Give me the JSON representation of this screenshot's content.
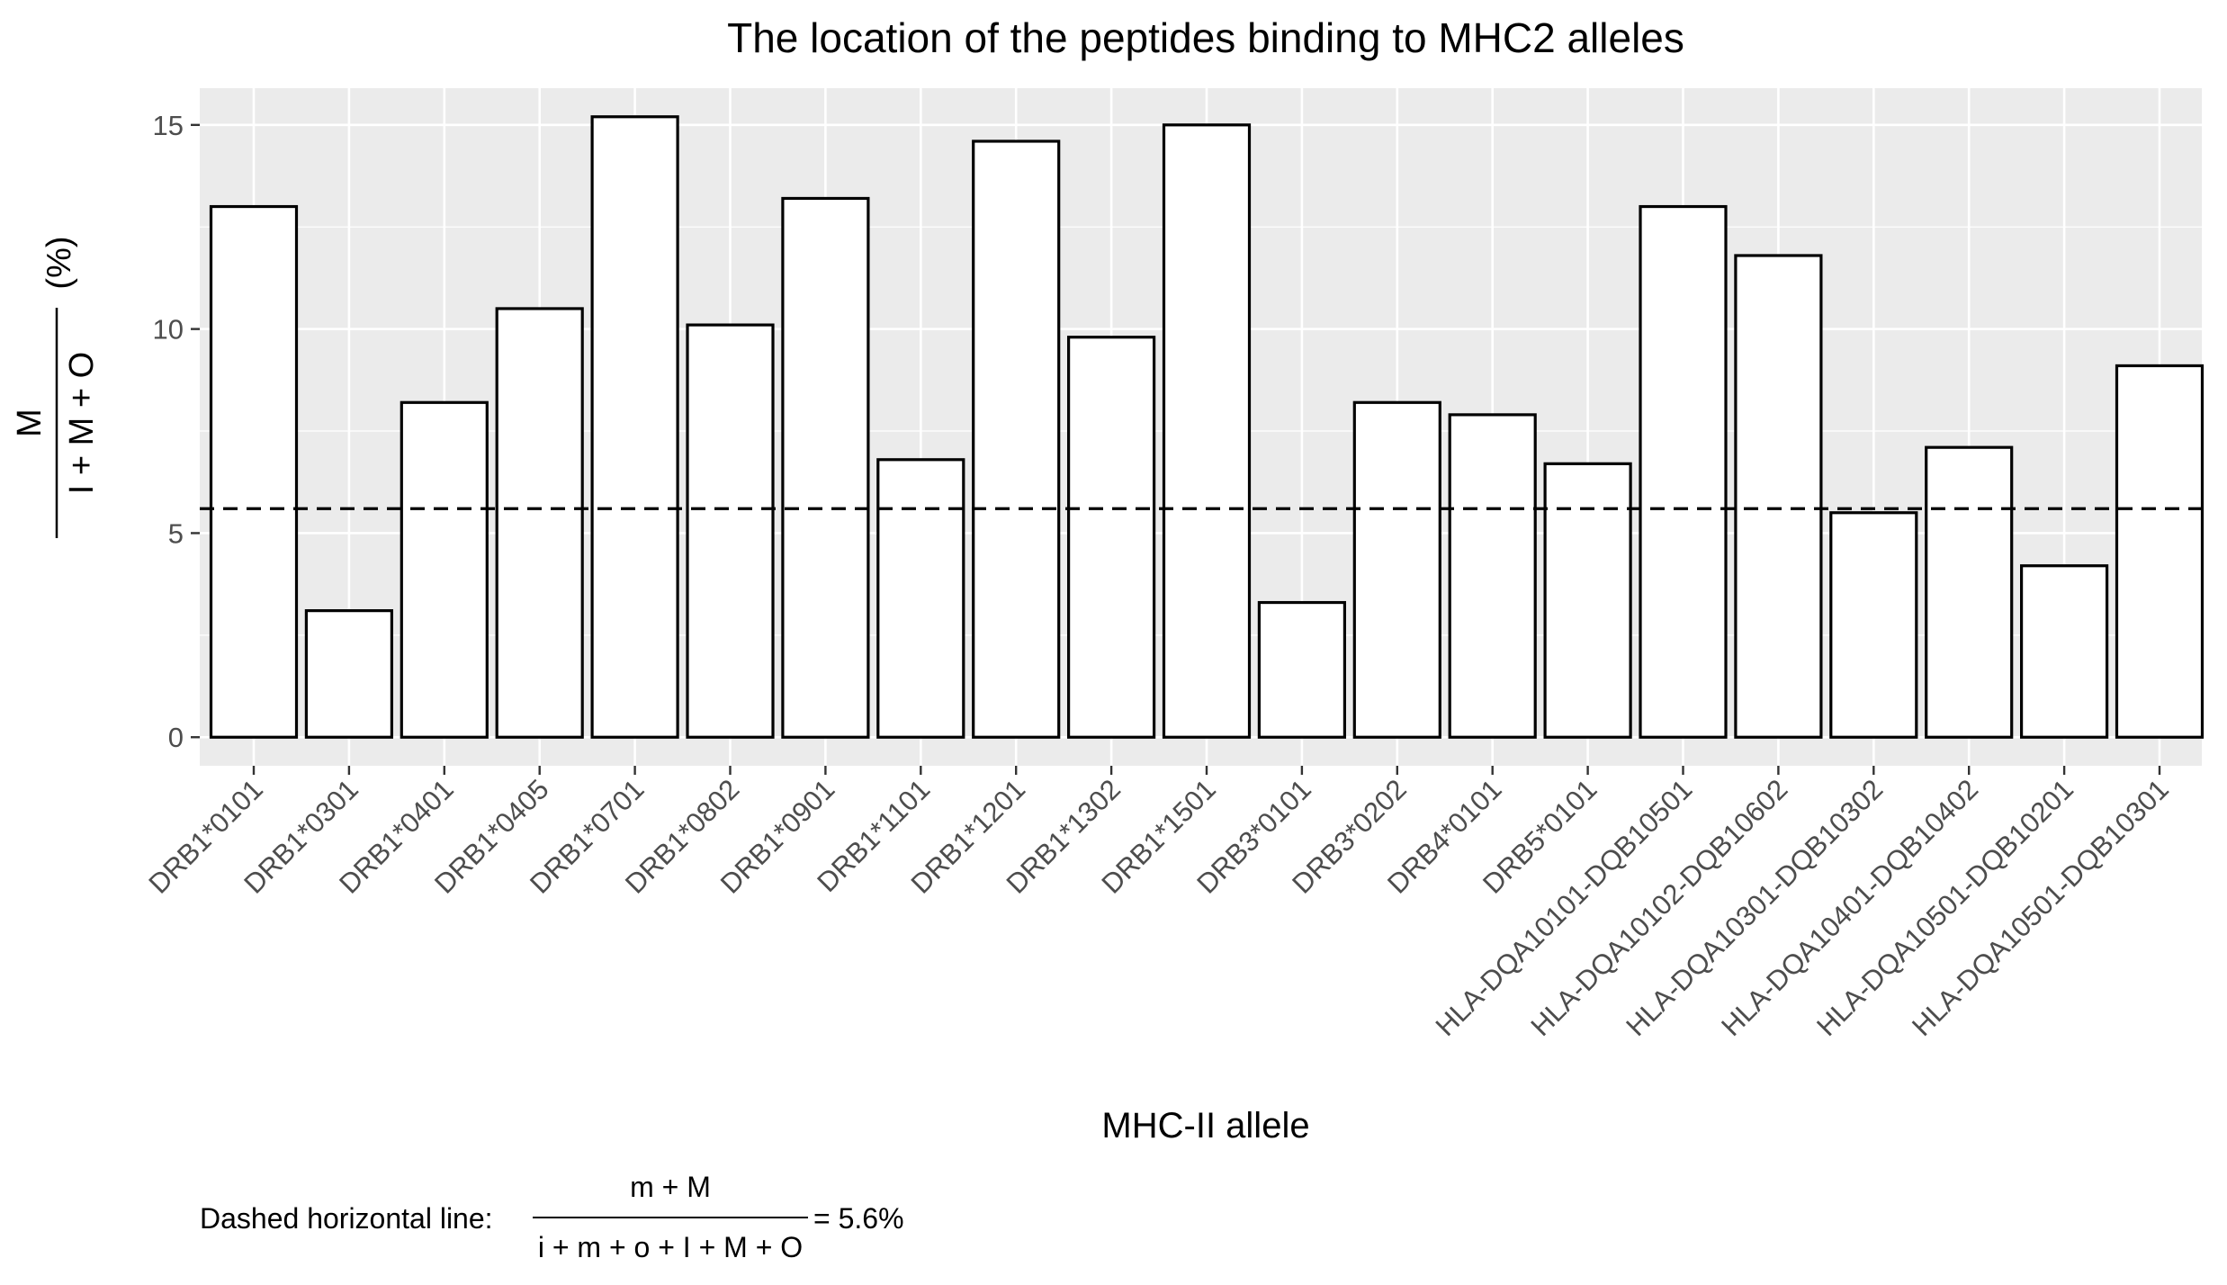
{
  "chart_data": {
    "type": "bar",
    "title": "The location of the peptides binding to MHC2 alleles",
    "xlabel": "MHC-II allele",
    "ylabel": {
      "numerator": "M",
      "denominator": "I + M + O",
      "suffix": "(%)"
    },
    "categories": [
      "DRB1*0101",
      "DRB1*0301",
      "DRB1*0401",
      "DRB1*0405",
      "DRB1*0701",
      "DRB1*0802",
      "DRB1*0901",
      "DRB1*1101",
      "DRB1*1201",
      "DRB1*1302",
      "DRB1*1501",
      "DRB3*0101",
      "DRB3*0202",
      "DRB4*0101",
      "DRB5*0101",
      "HLA-DQA10101-DQB10501",
      "HLA-DQA10102-DQB10602",
      "HLA-DQA10301-DQB10302",
      "HLA-DQA10401-DQB10402",
      "HLA-DQA10501-DQB10201",
      "HLA-DQA10501-DQB10301"
    ],
    "values": [
      13.0,
      3.1,
      8.2,
      10.5,
      15.2,
      10.1,
      13.2,
      6.8,
      14.6,
      9.8,
      15.0,
      3.3,
      8.2,
      7.9,
      6.7,
      13.0,
      11.8,
      5.5,
      7.1,
      4.2,
      9.1
    ],
    "ylim": [
      -0.7,
      15.9
    ],
    "yticks": [
      0,
      5,
      10,
      15
    ],
    "reference_line": {
      "value": 5.6,
      "style": "dashed"
    },
    "grid": true,
    "caption": {
      "prefix": "Dashed horizontal line:",
      "numerator": "m + M",
      "denominator": "i + m + o + I + M + O",
      "result": "= 5.6%"
    },
    "colors": {
      "panel_background": "#ebebeb",
      "grid": "#ffffff",
      "bar_fill": "#ffffff",
      "bar_stroke": "#000000",
      "tick_text": "#4d4d4d"
    }
  }
}
